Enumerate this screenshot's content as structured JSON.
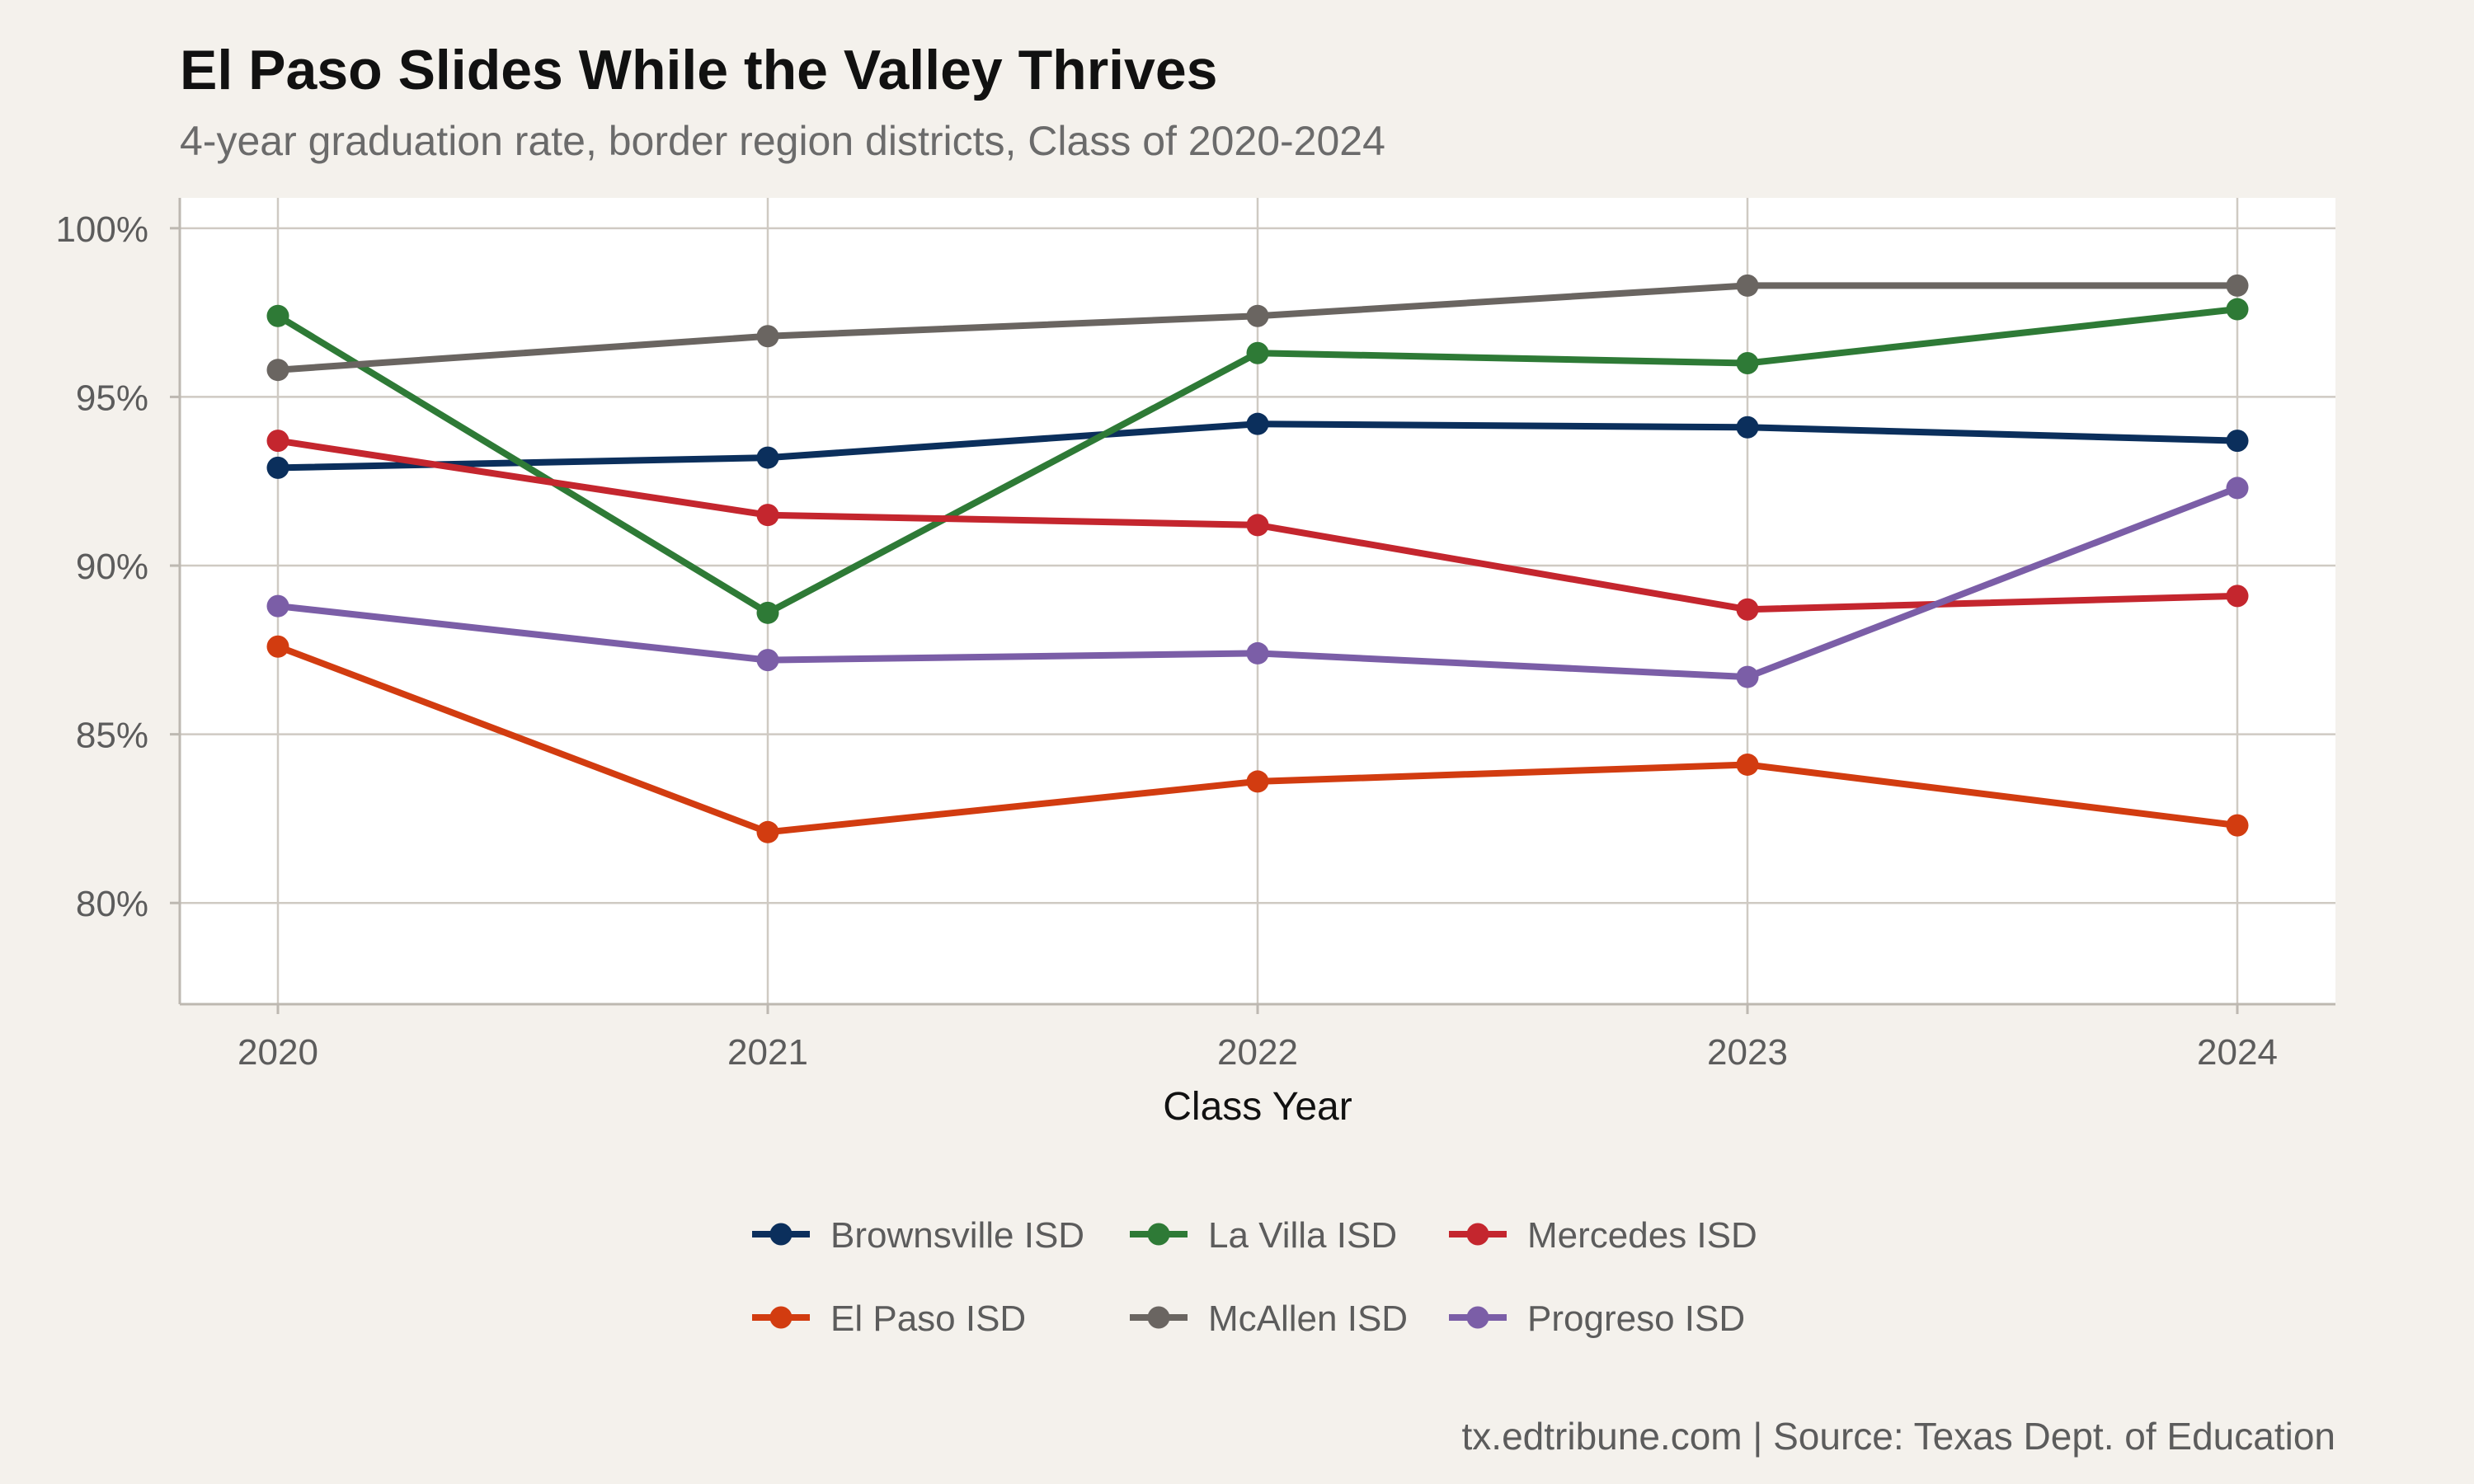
{
  "chart_data": {
    "type": "line",
    "title": "El Paso Slides While the Valley Thrives",
    "subtitle": "4-year graduation rate, border region districts, Class of 2020-2024",
    "xlabel": "Class Year",
    "ylabel": "",
    "x": [
      "2020",
      "2021",
      "2022",
      "2023",
      "2024"
    ],
    "y_ticks": [
      80,
      85,
      90,
      95,
      100
    ],
    "y_tick_labels": [
      "80%",
      "85%",
      "90%",
      "95%",
      "100%"
    ],
    "ylim": [
      77,
      100.9
    ],
    "grid": true,
    "legend_position": "bottom",
    "caption": "tx.edtribune.com | Source: Texas Dept. of Education",
    "series": [
      {
        "name": "Brownsville ISD",
        "color": "#0b2f5c",
        "values": [
          92.9,
          93.2,
          94.2,
          94.1,
          93.7
        ]
      },
      {
        "name": "La Villa ISD",
        "color": "#2e7a36",
        "values": [
          97.4,
          88.6,
          96.3,
          96.0,
          97.6
        ]
      },
      {
        "name": "Mercedes ISD",
        "color": "#c4262e",
        "values": [
          93.7,
          91.5,
          91.2,
          88.7,
          89.1
        ]
      },
      {
        "name": "El Paso ISD",
        "color": "#d23c10",
        "values": [
          87.6,
          82.1,
          83.6,
          84.1,
          82.3
        ]
      },
      {
        "name": "McAllen ISD",
        "color": "#6a6561",
        "values": [
          95.8,
          96.8,
          97.4,
          98.3,
          98.3
        ]
      },
      {
        "name": "Progreso ISD",
        "color": "#7b5ea7",
        "values": [
          88.8,
          87.2,
          87.4,
          86.7,
          92.3
        ]
      }
    ]
  }
}
